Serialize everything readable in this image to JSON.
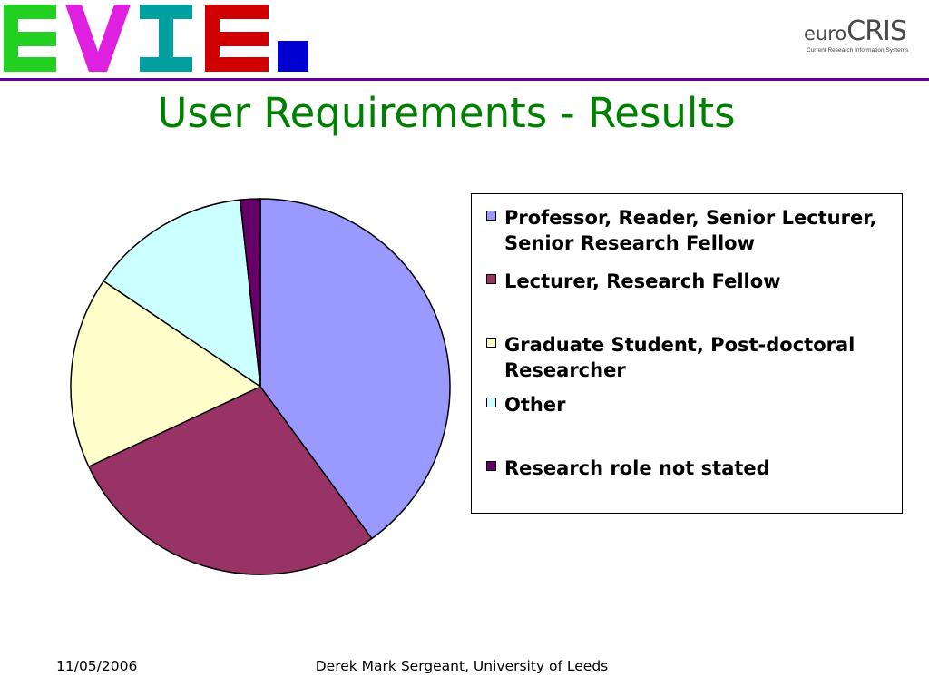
{
  "slide": {
    "title": "User Requirements - Results",
    "footer_date": "11/05/2006",
    "footer_author": "Derek Mark Sergeant, University of Leeds"
  },
  "logos": {
    "evie": {
      "text": "EVIE.",
      "colors": {
        "E": "#22d022",
        "V": "#e020e0",
        "I": "#00a0a0",
        "E2": "#d00000",
        "dot": "#0000d0"
      }
    },
    "eurocris": {
      "prefix": "euro",
      "name": "CRIS",
      "tagline": "Current Research Information Systems"
    }
  },
  "colors": {
    "title": "#008000",
    "divider": "#660099"
  },
  "chart_data": {
    "type": "pie",
    "title": "",
    "legend_position": "right",
    "categories": [
      "Professor, Reader, Senior Lecturer, Senior Research Fellow",
      "Lecturer, Research Fellow",
      "Graduate Student, Post-doctoral Researcher",
      "Other",
      "Research role not stated"
    ],
    "values": [
      40,
      28,
      16.5,
      13.8,
      1.7
    ],
    "colors": [
      "#9999ff",
      "#993366",
      "#ffffcc",
      "#ccffff",
      "#660066"
    ],
    "legend_labels": [
      [
        "Professor, Reader, Senior Lecturer,",
        "Senior Research Fellow"
      ],
      [
        "Lecturer, Research Fellow"
      ],
      [
        "Graduate Student, Post-doctoral",
        "Researcher"
      ],
      [
        "Other"
      ],
      [
        "Research role not stated"
      ]
    ]
  }
}
